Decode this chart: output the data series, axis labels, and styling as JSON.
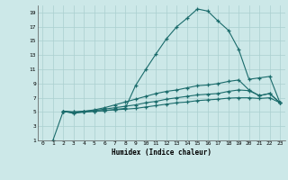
{
  "xlabel": "Humidex (Indice chaleur)",
  "xlim": [
    -0.5,
    23.5
  ],
  "ylim": [
    1,
    20
  ],
  "xticks": [
    0,
    1,
    2,
    3,
    4,
    5,
    6,
    7,
    8,
    9,
    10,
    11,
    12,
    13,
    14,
    15,
    16,
    17,
    18,
    19,
    20,
    21,
    22,
    23
  ],
  "yticks": [
    1,
    3,
    5,
    7,
    9,
    11,
    13,
    15,
    17,
    19
  ],
  "bg_color": "#cce8e8",
  "grid_color": "#aacfcf",
  "line_color": "#1a6b6b",
  "line1_x": [
    1,
    2,
    3,
    4,
    5,
    6,
    7,
    8,
    9,
    10,
    11,
    12,
    13,
    14,
    15,
    16,
    17,
    18,
    19,
    20,
    21,
    22,
    23
  ],
  "line1_y": [
    1.0,
    5.1,
    4.8,
    5.0,
    5.1,
    5.2,
    5.35,
    5.5,
    8.7,
    11.0,
    13.2,
    15.3,
    17.0,
    18.2,
    19.5,
    19.2,
    17.8,
    16.5,
    13.8,
    9.6,
    9.8,
    10.0,
    6.3
  ],
  "line2_x": [
    2,
    3,
    4,
    5,
    6,
    7,
    8,
    9,
    10,
    11,
    12,
    13,
    14,
    15,
    16,
    17,
    18,
    19,
    20,
    21,
    22,
    23
  ],
  "line2_y": [
    5.1,
    5.0,
    5.1,
    5.3,
    5.6,
    6.0,
    6.4,
    6.8,
    7.2,
    7.6,
    7.9,
    8.1,
    8.4,
    8.7,
    8.8,
    9.0,
    9.3,
    9.5,
    8.1,
    7.3,
    7.6,
    6.3
  ],
  "line3_x": [
    2,
    3,
    4,
    5,
    6,
    7,
    8,
    9,
    10,
    11,
    12,
    13,
    14,
    15,
    16,
    17,
    18,
    19,
    20,
    21,
    22,
    23
  ],
  "line3_y": [
    5.1,
    5.0,
    5.1,
    5.2,
    5.4,
    5.6,
    5.8,
    6.0,
    6.3,
    6.5,
    6.8,
    7.0,
    7.2,
    7.4,
    7.5,
    7.6,
    7.9,
    8.1,
    8.0,
    7.3,
    7.6,
    6.3
  ],
  "line4_x": [
    2,
    3,
    4,
    5,
    6,
    7,
    8,
    9,
    10,
    11,
    12,
    13,
    14,
    15,
    16,
    17,
    18,
    19,
    20,
    21,
    22,
    23
  ],
  "line4_y": [
    5.1,
    4.9,
    5.0,
    5.1,
    5.2,
    5.3,
    5.4,
    5.5,
    5.7,
    5.9,
    6.1,
    6.3,
    6.4,
    6.6,
    6.7,
    6.8,
    6.95,
    7.0,
    7.0,
    6.9,
    7.0,
    6.3
  ]
}
